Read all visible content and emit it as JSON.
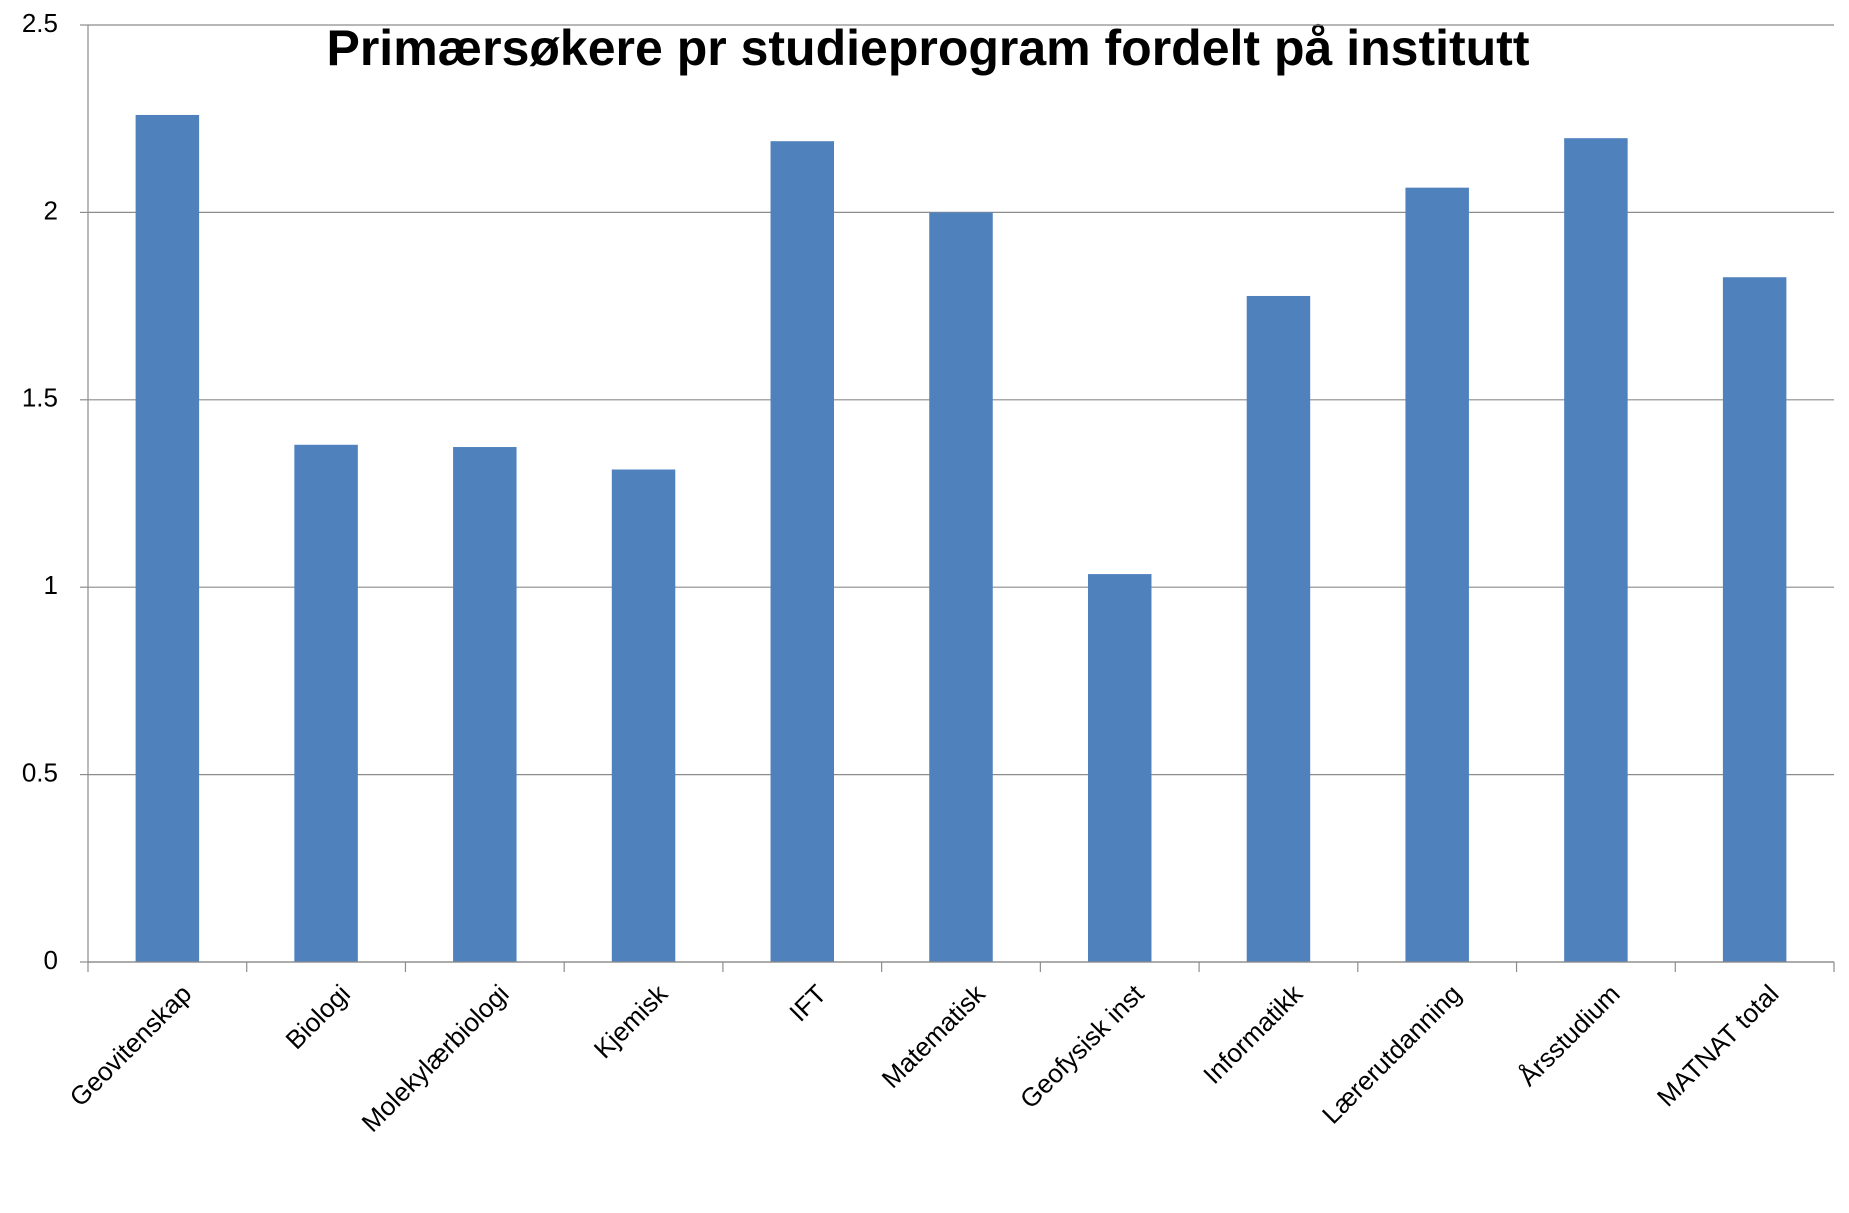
{
  "chart_data": {
    "type": "bar",
    "title": "Primærsøkere pr studieprogram fordelt på institutt",
    "categories": [
      "Geovitenskap",
      "Biologi",
      "Molekylærbiologi",
      "Kjemisk",
      "IFT",
      "Matematisk",
      "Geofysisk inst",
      "Informatikk",
      "Lærerutdanning",
      "Årsstudium",
      "MATNAT total"
    ],
    "values": [
      2.26,
      1.38,
      1.374,
      1.314,
      2.19,
      2.0,
      1.035,
      1.777,
      2.066,
      2.198,
      1.827
    ],
    "color": "#4f81bd",
    "ylim": [
      0,
      2.5
    ],
    "yticks": [
      0,
      0.5,
      1,
      1.5,
      2,
      2.5
    ],
    "grid": true
  }
}
